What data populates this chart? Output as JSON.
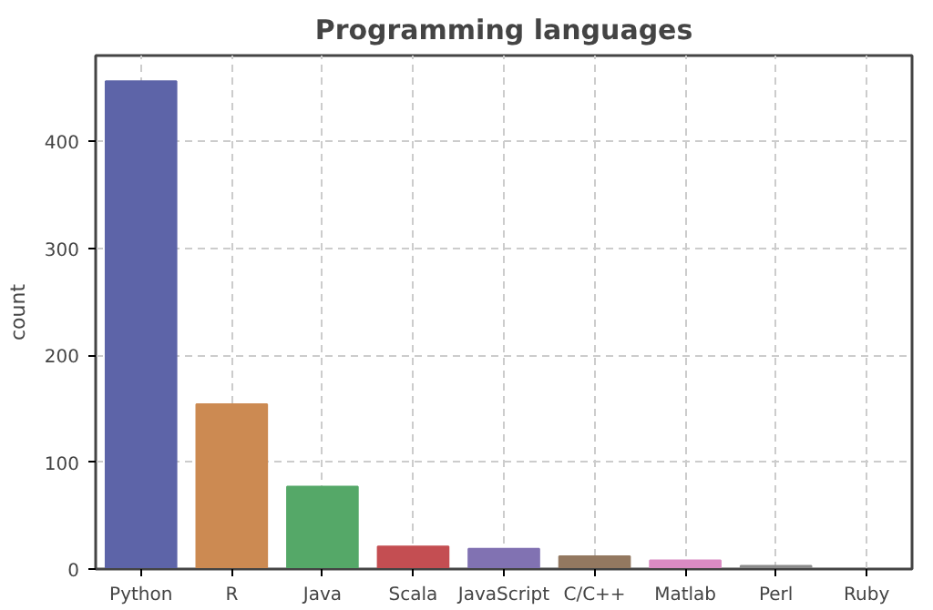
{
  "chart_data": {
    "type": "bar",
    "title": "Programming languages",
    "ylabel": "count",
    "categories": [
      "Python",
      "R",
      "Java",
      "Scala",
      "JavaScript",
      "C/C++",
      "Matlab",
      "Perl",
      "Ruby"
    ],
    "values": [
      456,
      154,
      77,
      21,
      19,
      12,
      8,
      3,
      0
    ],
    "colors": [
      "#5d64a8",
      "#cc8a52",
      "#55a868",
      "#c44e52",
      "#8172b2",
      "#937860",
      "#da8bc3",
      "#8c8c8c",
      "#ccb974"
    ],
    "ylim": [
      0,
      480
    ],
    "yticks": [
      0,
      100,
      200,
      300,
      400
    ],
    "grid": true
  }
}
